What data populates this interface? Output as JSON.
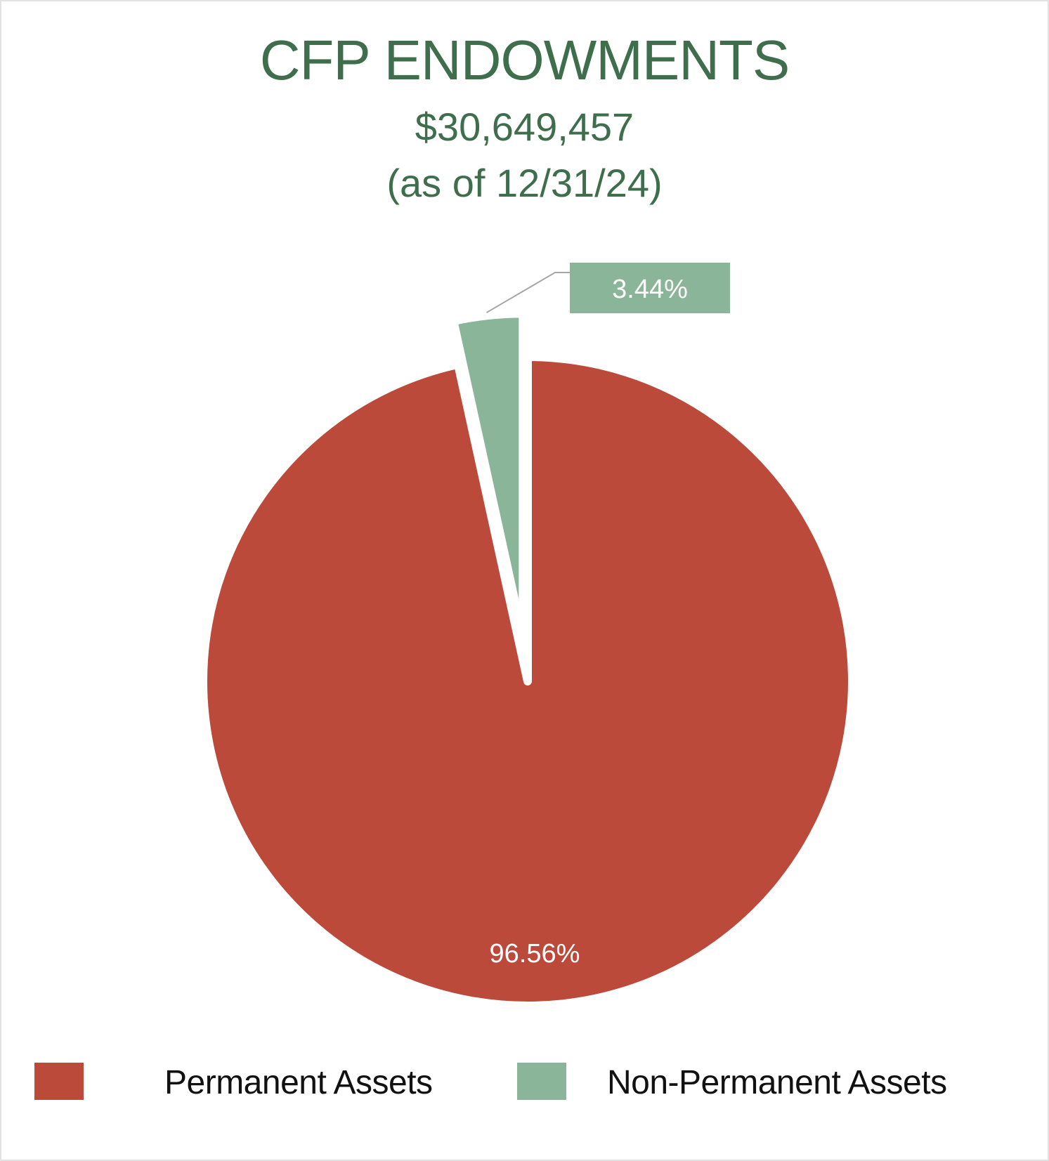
{
  "chart_data": {
    "type": "pie",
    "title": "CFP ENDOWMENTS",
    "subtitle": "$30,649,457",
    "date_note": "(as of 12/31/24)",
    "slices": [
      {
        "name": "Permanent Assets",
        "value": 96.56,
        "label": "96.56%",
        "color": "#bb4a3b"
      },
      {
        "name": "Non-Permanent Assets",
        "value": 3.44,
        "label": "3.44%",
        "color": "#8ab598"
      }
    ],
    "legend": {
      "position": "bottom",
      "items": [
        {
          "label": "Permanent Assets",
          "color": "#bb4a3b"
        },
        {
          "label": "Non-Permanent Assets",
          "color": "#8ab598"
        }
      ]
    }
  }
}
